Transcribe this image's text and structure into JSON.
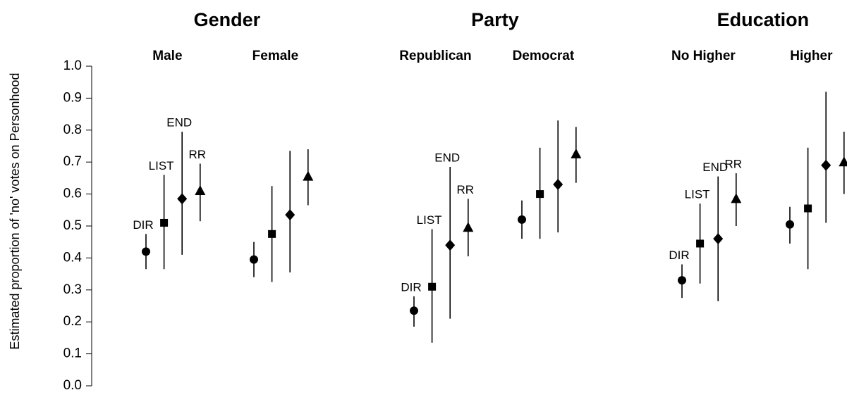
{
  "chart_data": {
    "type": "dot",
    "ylabel": "Estimated proportion of 'no' votes on Personhood",
    "ylim": [
      0,
      1
    ],
    "yticks": [
      {
        "value": 0,
        "label": "0.0"
      },
      0.1,
      0.2,
      0.3,
      0.4,
      0.5,
      0.6,
      0.7,
      0.8,
      0.9,
      {
        "value": 1,
        "label": "1.0"
      }
    ],
    "groups": [
      "Gender",
      "Party",
      "Education"
    ],
    "categories": [
      "Male",
      "Female",
      "Republican",
      "Democrat",
      "No Higher",
      "Higher"
    ],
    "series": [
      {
        "name": "DIR",
        "marker": "circle",
        "color": "#000000",
        "values": [
          0.42,
          0.395,
          0.235,
          0.52,
          0.33,
          0.505
        ],
        "lower": [
          0.365,
          0.34,
          0.185,
          0.46,
          0.275,
          0.445
        ],
        "upper": [
          0.475,
          0.45,
          0.28,
          0.58,
          0.38,
          0.56
        ]
      },
      {
        "name": "LIST",
        "marker": "square",
        "color": "#000000",
        "values": [
          0.51,
          0.475,
          0.31,
          0.6,
          0.445,
          0.555
        ],
        "lower": [
          0.365,
          0.325,
          0.135,
          0.46,
          0.32,
          0.365
        ],
        "upper": [
          0.66,
          0.625,
          0.49,
          0.745,
          0.57,
          0.745
        ]
      },
      {
        "name": "END",
        "marker": "diamond",
        "color": "#000000",
        "values": [
          0.585,
          0.535,
          0.44,
          0.63,
          0.46,
          0.69
        ],
        "lower": [
          0.41,
          0.355,
          0.21,
          0.48,
          0.265,
          0.51
        ],
        "upper": [
          0.795,
          0.735,
          0.685,
          0.83,
          0.655,
          0.92
        ]
      },
      {
        "name": "RR",
        "marker": "triangle",
        "color": "#000000",
        "values": [
          0.61,
          0.655,
          0.495,
          0.725,
          0.585,
          0.7
        ],
        "lower": [
          0.515,
          0.565,
          0.405,
          0.635,
          0.5,
          0.6
        ],
        "upper": [
          0.695,
          0.74,
          0.585,
          0.81,
          0.665,
          0.795
        ]
      }
    ]
  }
}
